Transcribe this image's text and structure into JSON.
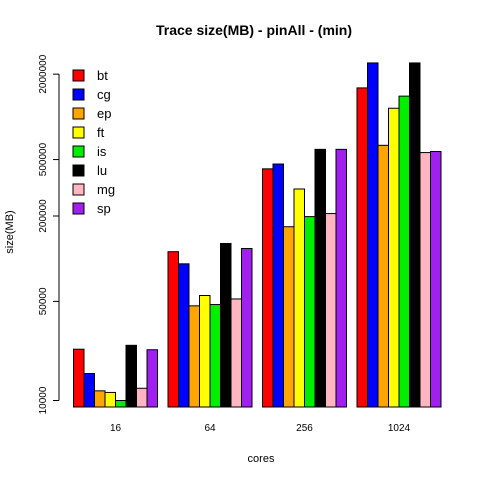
{
  "chart_data": {
    "type": "bar",
    "title": "Trace size(MB) - pinAll - (min)",
    "xlabel": "cores",
    "ylabel": "size(MB)",
    "log_scale_y": true,
    "ylim": [
      9000,
      2600000
    ],
    "y_ticks": [
      "10000",
      "50000",
      "200000",
      "500000",
      "2000000"
    ],
    "y_tick_values": [
      10000,
      50000,
      200000,
      500000,
      2000000
    ],
    "categories": [
      "16",
      "64",
      "256",
      "1024"
    ],
    "legend_position": "top-left",
    "series": [
      {
        "name": "bt",
        "color": "#ff0000",
        "values": [
          23000,
          112000,
          430000,
          1600000
        ]
      },
      {
        "name": "cg",
        "color": "#0000ff",
        "values": [
          15500,
          92000,
          465000,
          2400000
        ]
      },
      {
        "name": "ep",
        "color": "#ffa500",
        "values": [
          11700,
          46500,
          168000,
          630000
        ]
      },
      {
        "name": "ft",
        "color": "#ffff00",
        "values": [
          11400,
          55000,
          310000,
          1150000
        ]
      },
      {
        "name": "is",
        "color": "#00ee00",
        "values": [
          10000,
          47500,
          198000,
          1400000
        ]
      },
      {
        "name": "lu",
        "color": "#000000",
        "values": [
          24500,
          128000,
          590000,
          2400000
        ]
      },
      {
        "name": "mg",
        "color": "#ffb6c1",
        "values": [
          12200,
          52000,
          208000,
          560000
        ]
      },
      {
        "name": "sp",
        "color": "#a020f0",
        "values": [
          22800,
          118000,
          590000,
          570000
        ]
      }
    ]
  }
}
